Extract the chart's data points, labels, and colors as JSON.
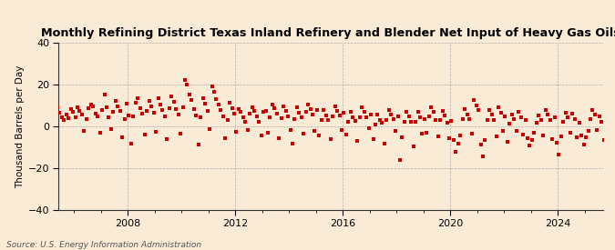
{
  "title": "Monthly Refining District Texas Inland Refinery and Blender Net Input of Heavy Gas Oils",
  "ylabel": "Thousand Barrels per Day",
  "source": "Source: U.S. Energy Information Administration",
  "bg_color": "#faebd7",
  "dot_color": "#cc0000",
  "dot_size": 7,
  "ylim": [
    -40,
    40
  ],
  "yticks": [
    -40,
    -20,
    0,
    20,
    40
  ],
  "start_year": 2005,
  "start_month": 2,
  "values": [
    5.2,
    3.1,
    7.4,
    8.9,
    6.3,
    4.1,
    2.8,
    5.6,
    3.9,
    8.2,
    6.7,
    4.5,
    9.1,
    7.3,
    5.8,
    -2.1,
    3.4,
    8.7,
    10.2,
    9.5,
    6.1,
    4.8,
    -3.2,
    7.6,
    15.3,
    8.9,
    4.2,
    -1.5,
    6.8,
    12.1,
    9.4,
    7.3,
    -5.2,
    3.6,
    10.8,
    5.1,
    -8.3,
    4.7,
    11.2,
    13.5,
    8.6,
    5.9,
    -4.1,
    7.2,
    12.3,
    9.7,
    6.4,
    -2.8,
    13.4,
    10.2,
    7.6,
    4.9,
    -6.3,
    8.5,
    14.2,
    11.8,
    8.3,
    5.7,
    -3.4,
    9.1,
    22.1,
    19.8,
    15.3,
    12.6,
    8.4,
    5.2,
    -8.7,
    4.3,
    13.6,
    10.9,
    7.5,
    -1.2,
    18.9,
    16.4,
    13.1,
    10.5,
    7.8,
    4.6,
    -5.9,
    3.2,
    11.4,
    8.7,
    6.1,
    -2.5,
    8.3,
    6.7,
    4.5,
    2.1,
    -1.8,
    5.9,
    9.2,
    7.4,
    4.8,
    2.3,
    -4.2,
    6.8,
    7.5,
    -2.9,
    4.1,
    10.3,
    8.6,
    6.2,
    -5.8,
    3.7,
    9.5,
    7.2,
    4.6,
    -1.9,
    -8.2,
    3.4,
    8.9,
    6.5,
    4.1,
    -3.6,
    6.8,
    10.4,
    8.1,
    5.6,
    -2.3,
    7.9,
    -4.5,
    2.8,
    7.6,
    5.3,
    3.1,
    -6.2,
    4.9,
    9.7,
    7.4,
    5.1,
    -1.7,
    6.5,
    -3.8,
    1.9,
    6.7,
    4.5,
    2.4,
    -7.1,
    4.2,
    8.9,
    6.7,
    4.4,
    -0.9,
    5.8,
    -6.3,
    0.8,
    5.4,
    3.2,
    1.5,
    -8.4,
    3.2,
    7.8,
    5.6,
    3.4,
    -2.1,
    4.7,
    -16.2,
    -5.4,
    2.1,
    6.8,
    4.6,
    2.3,
    -9.7,
    2.1,
    6.7,
    4.5,
    -3.5,
    3.6,
    -2.9,
    4.8,
    8.9,
    6.7,
    3.2,
    -4.8,
    2.8,
    7.4,
    5.2,
    1.6,
    -5.9,
    2.4,
    -6.7,
    -12.3,
    -8.4,
    -4.2,
    3.6,
    8.1,
    5.8,
    3.4,
    -3.6,
    12.4,
    10.1,
    7.6,
    -8.9,
    -14.2,
    -6.7,
    3.1,
    7.8,
    5.4,
    2.9,
    -4.7,
    8.9,
    6.5,
    -2.3,
    4.8,
    -7.4,
    1.2,
    5.8,
    3.5,
    -2.1,
    6.7,
    4.3,
    -3.8,
    2.9,
    -5.6,
    -9.2,
    -6.4,
    -3.1,
    1.8,
    5.2,
    3.1,
    -4.5,
    7.8,
    5.4,
    2.9,
    -6.3,
    4.2,
    -7.8,
    -13.6,
    -4.8,
    2.1,
    6.5,
    4.2,
    -3.2,
    5.9,
    3.5,
    -5.1,
    1.8,
    -4.3,
    -8.7,
    -5.2,
    -2.4,
    3.5,
    7.8,
    5.6,
    -1.8,
    4.7,
    2.3,
    -6.4,
    3.1,
    7.5,
    5.3
  ]
}
